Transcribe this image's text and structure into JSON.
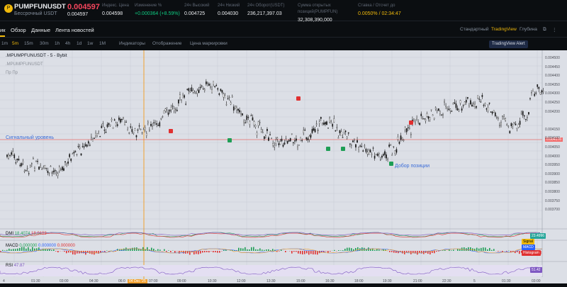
{
  "header": {
    "symbol": "PUMPFUNUSDT",
    "symbol_sub": "Бессрочный USDT",
    "info_icon": "info-icon",
    "price": "0.004597",
    "price_sub": "0.004597",
    "stats": [
      {
        "label": "Индекс. Цена",
        "value": "0.004598"
      },
      {
        "label": "Изменение %",
        "value": "+0.000364 (+8.59%)"
      },
      {
        "label": "24ч Высокий",
        "value": "0.004725"
      },
      {
        "label": "24ч Низкий",
        "value": "0.004030"
      },
      {
        "label": "24ч Оборот(USDT)",
        "value": "236,217,397.03"
      },
      {
        "label": "Сумма открытых позиций(PUMPFUN)",
        "value": "32,308,390,000"
      },
      {
        "label": "Ставка / Отсчет до",
        "value": "0.0050% / 02:34:47"
      }
    ]
  },
  "tabs": {
    "left": "ик",
    "items": [
      "Обзор",
      "Данные",
      "Лента новостей"
    ],
    "view": [
      "Стандартный",
      "TradingView",
      "Глубина"
    ]
  },
  "toolbar": {
    "timeframes": [
      "1m",
      "5m",
      "15m",
      "30m",
      "1h",
      "4h",
      "1d",
      "1w",
      "1M"
    ],
    "indicators": "Индикаторы",
    "display": "Отображение",
    "mark_price": "Цена маркировки",
    "tv_alert": "TradingView Alert"
  },
  "chart": {
    "title": ".MPUMPFUNUSDT - 5 - Bybit",
    "sub1": ".MPUMPFUNUSDT",
    "sub2": "Пр Пр",
    "signal_label": "Сигнальный уровень",
    "add_label": "Добор позиции",
    "price_levels": [
      "0.004500",
      "0.004450",
      "0.004400",
      "0.004350",
      "0.004300",
      "0.004250",
      "0.004200",
      "0.004176",
      "0.004150",
      "0.004100",
      "0.004050",
      "0.004000",
      "0.003950",
      "0.003900",
      "0.003850",
      "0.003800",
      "0.003750",
      "0.003700"
    ],
    "times": [
      "4",
      "01:30",
      "03:00",
      "04:30",
      "06:0",
      "04 Dec '25",
      "07:00",
      "09:00",
      "10:30",
      "12:00",
      "13:30",
      "15:00",
      "16:30",
      "18:00",
      "19:30",
      "21:00",
      "22:30",
      "5",
      "01:30",
      "03:00"
    ]
  },
  "indicators": {
    "dmi": {
      "label": "DMI",
      "v1": "18.4074",
      "v2": "18.0103",
      "tag": "23.4996"
    },
    "macd": {
      "label": "MACD",
      "v1": "0.000000",
      "v2": "0.000000",
      "v3": "0.000000",
      "tags": [
        "Signal",
        "MACD",
        "Histogram"
      ]
    },
    "rsi": {
      "label": "RSI",
      "value": "47.87",
      "tag": "51.42"
    }
  }
}
